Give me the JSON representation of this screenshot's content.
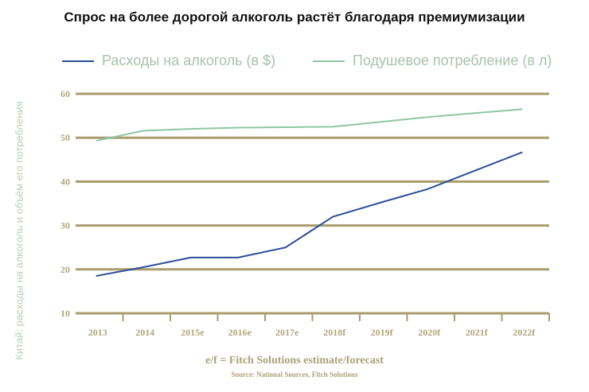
{
  "chart_data": {
    "type": "line",
    "title": "Спрос на более дорогой алкоголь растёт благодаря премиумизации",
    "ylabel": "Китай: расходы на алкоголь и объём его потребления",
    "xlabel": "",
    "categories": [
      "2013",
      "2014",
      "2015e",
      "2016e",
      "2017e",
      "2018f",
      "2019f",
      "2020f",
      "2021f",
      "2022f"
    ],
    "yticks": [
      "10",
      "20",
      "30",
      "40",
      "50",
      "60"
    ],
    "ylim": [
      10,
      60
    ],
    "grid": true,
    "legend_position": "top",
    "series": [
      {
        "name": "Расходы на алкоголь (в $)",
        "color": "#2b4f97",
        "values": [
          18.5,
          20.5,
          22.7,
          22.7,
          25,
          32,
          35.2,
          38.3,
          42.5,
          46.7
        ]
      },
      {
        "name": "Подушевое потребление (в л)",
        "color": "#8fc6a3",
        "values": [
          49.3,
          51.6,
          52,
          52.3,
          52.4,
          52.5,
          53.6,
          54.7,
          55.6,
          56.5
        ]
      }
    ],
    "note": "e/f = Fitch Solutions estimate/forecast",
    "source": "Source: National Sources, Fitch Solutions"
  },
  "colors": {
    "grid": "#a89d6c"
  }
}
